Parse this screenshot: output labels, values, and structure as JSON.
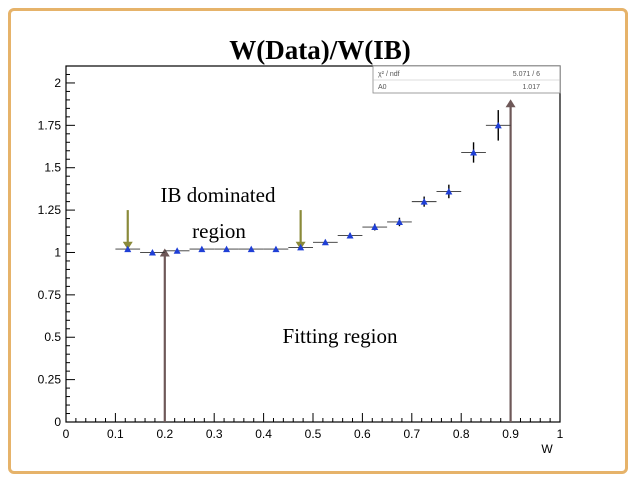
{
  "chart_data": {
    "type": "scatter",
    "title": "W(Data)/W(IB)",
    "xlabel": "W",
    "ylabel": "",
    "xlim": [
      0,
      1
    ],
    "ylim": [
      0,
      2.1
    ],
    "x_ticks": [
      "0",
      "0.1",
      "0.2",
      "0.3",
      "0.4",
      "0.5",
      "0.6",
      "0.7",
      "0.8",
      "0.9",
      "1"
    ],
    "y_ticks": [
      "0",
      "0.25",
      "0.5",
      "0.75",
      "1",
      "1.25",
      "1.5",
      "1.75",
      "2"
    ],
    "grid": false,
    "series": [
      {
        "name": "",
        "color": "#1f3fd6",
        "x": [
          0.125,
          0.175,
          0.225,
          0.275,
          0.325,
          0.375,
          0.425,
          0.475,
          0.525,
          0.575,
          0.625,
          0.675,
          0.725,
          0.775,
          0.825,
          0.875
        ],
        "y": [
          1.02,
          1.0,
          1.01,
          1.02,
          1.02,
          1.02,
          1.02,
          1.03,
          1.06,
          1.1,
          1.15,
          1.18,
          1.3,
          1.36,
          1.59,
          1.75
        ],
        "yerr": [
          0.01,
          0.01,
          0.01,
          0.01,
          0.01,
          0.01,
          0.01,
          0.01,
          0.015,
          0.015,
          0.02,
          0.025,
          0.03,
          0.04,
          0.06,
          0.09
        ]
      }
    ],
    "annotations": [
      {
        "text": "IB dominated",
        "type": "label"
      },
      {
        "text": "region",
        "type": "label"
      },
      {
        "text": "Fitting region",
        "type": "label"
      }
    ],
    "arrows": [
      {
        "x": 0.125,
        "from_y": 1.25,
        "to_y": 1.04,
        "color": "#8a8a3a"
      },
      {
        "x": 0.475,
        "from_y": 1.25,
        "to_y": 1.04,
        "color": "#8a8a3a"
      },
      {
        "x": 0.2,
        "from_y": 0.0,
        "to_y": 1.0,
        "color": "#6e5858"
      },
      {
        "x": 0.9,
        "from_y": 0.0,
        "to_y": 1.88,
        "color": "#6e5858"
      }
    ],
    "stats_box": [
      [
        "χ² / ndf",
        "5.071 / 6"
      ],
      [
        "A0",
        "1.017"
      ]
    ]
  }
}
